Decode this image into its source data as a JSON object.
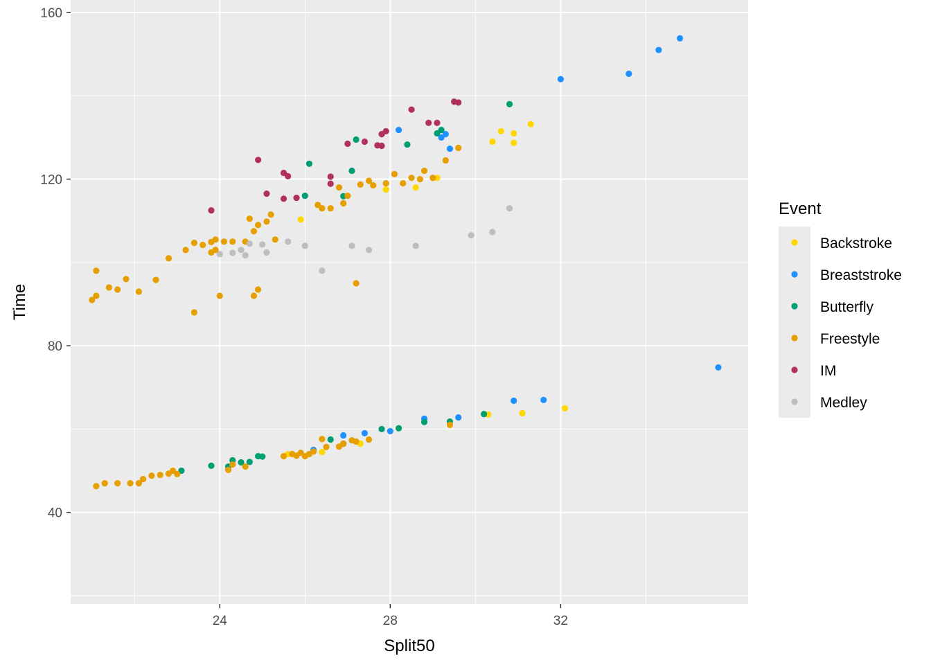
{
  "chart_data": {
    "type": "scatter",
    "title": "",
    "xlabel": "Split50",
    "ylabel": "Time",
    "xlim": [
      20.5,
      36.4
    ],
    "ylim": [
      18,
      163
    ],
    "x_ticks": [
      24,
      28,
      32
    ],
    "x_tick_labels": [
      "24",
      "28",
      "32"
    ],
    "y_ticks": [
      40,
      80,
      120,
      160
    ],
    "y_tick_labels": [
      "40",
      "80",
      "120",
      "160"
    ],
    "grid": true,
    "legend": {
      "title": "Event",
      "position": "right"
    },
    "series": [
      {
        "name": "Backstroke",
        "color": "#FFD700",
        "points": [
          [
            25.6,
            54.0
          ],
          [
            26.4,
            54.5
          ],
          [
            27.3,
            56.5
          ],
          [
            28.0,
            59.5
          ],
          [
            30.3,
            63.5
          ],
          [
            31.1,
            63.8
          ],
          [
            32.1,
            65.0
          ],
          [
            27.2,
            57.0
          ],
          [
            25.9,
            110.3
          ],
          [
            27.9,
            117.5
          ],
          [
            28.6,
            118.0
          ],
          [
            29.1,
            120.3
          ],
          [
            30.4,
            129.0
          ],
          [
            30.6,
            131.5
          ],
          [
            30.9,
            131.0
          ],
          [
            30.9,
            128.7
          ],
          [
            31.3,
            133.2
          ]
        ]
      },
      {
        "name": "Breaststroke",
        "color": "#1E90FF",
        "points": [
          [
            26.2,
            55.0
          ],
          [
            26.9,
            58.5
          ],
          [
            27.4,
            59.0
          ],
          [
            28.0,
            59.5
          ],
          [
            28.8,
            62.5
          ],
          [
            29.6,
            62.8
          ],
          [
            30.9,
            66.8
          ],
          [
            31.6,
            67.0
          ],
          [
            35.7,
            74.8
          ],
          [
            28.2,
            131.8
          ],
          [
            29.2,
            130.0
          ],
          [
            29.3,
            130.8
          ],
          [
            29.4,
            127.3
          ],
          [
            32.0,
            144.0
          ],
          [
            33.6,
            145.3
          ],
          [
            34.3,
            151.0
          ],
          [
            34.8,
            153.8
          ]
        ]
      },
      {
        "name": "Butterfly",
        "color": "#009E73",
        "points": [
          [
            23.1,
            50.0
          ],
          [
            23.8,
            51.2
          ],
          [
            24.2,
            51.0
          ],
          [
            24.3,
            52.5
          ],
          [
            24.5,
            52.0
          ],
          [
            24.7,
            52.1
          ],
          [
            24.9,
            53.5
          ],
          [
            25.0,
            53.4
          ],
          [
            26.6,
            57.5
          ],
          [
            26.9,
            56.5
          ],
          [
            27.8,
            60.0
          ],
          [
            28.2,
            60.2
          ],
          [
            29.4,
            61.8
          ],
          [
            28.8,
            61.7
          ],
          [
            30.2,
            63.6
          ],
          [
            26.1,
            123.7
          ],
          [
            26.0,
            116.0
          ],
          [
            26.9,
            115.9
          ],
          [
            27.1,
            122.0
          ],
          [
            27.2,
            129.5
          ],
          [
            28.4,
            128.3
          ],
          [
            29.1,
            131.0
          ],
          [
            29.2,
            131.8
          ],
          [
            30.8,
            138.0
          ]
        ]
      },
      {
        "name": "Freestyle",
        "color": "#E69F00",
        "points": [
          [
            21.1,
            46.3
          ],
          [
            21.3,
            47.0
          ],
          [
            21.6,
            47.0
          ],
          [
            21.9,
            47.0
          ],
          [
            22.1,
            47.0
          ],
          [
            22.2,
            48.0
          ],
          [
            22.4,
            48.8
          ],
          [
            22.6,
            49.0
          ],
          [
            22.8,
            49.3
          ],
          [
            22.9,
            50.0
          ],
          [
            23.0,
            49.2
          ],
          [
            24.2,
            50.2
          ],
          [
            24.3,
            51.5
          ],
          [
            24.6,
            51.0
          ],
          [
            25.8,
            53.6
          ],
          [
            25.7,
            54.0
          ],
          [
            26.2,
            54.6
          ],
          [
            26.5,
            55.7
          ],
          [
            26.8,
            55.8
          ],
          [
            27.1,
            57.3
          ],
          [
            27.2,
            57.0
          ],
          [
            26.4,
            57.6
          ],
          [
            26.9,
            56.5
          ],
          [
            27.5,
            57.5
          ],
          [
            26.0,
            53.5
          ],
          [
            26.1,
            54.0
          ],
          [
            25.9,
            54.3
          ],
          [
            25.5,
            53.5
          ],
          [
            21.0,
            91.0
          ],
          [
            21.1,
            92.0
          ],
          [
            21.1,
            98.0
          ],
          [
            21.4,
            94.0
          ],
          [
            21.6,
            93.5
          ],
          [
            21.8,
            96.0
          ],
          [
            22.1,
            93.0
          ],
          [
            22.5,
            95.8
          ],
          [
            22.8,
            101.0
          ],
          [
            23.2,
            103.0
          ],
          [
            23.4,
            88.0
          ],
          [
            23.4,
            104.7
          ],
          [
            23.6,
            104.2
          ],
          [
            23.8,
            104.9
          ],
          [
            23.8,
            102.4
          ],
          [
            23.9,
            103.0
          ],
          [
            23.9,
            105.5
          ],
          [
            24.0,
            92.0
          ],
          [
            24.1,
            105.0
          ],
          [
            24.3,
            105.0
          ],
          [
            24.6,
            105.0
          ],
          [
            24.7,
            110.5
          ],
          [
            24.8,
            107.5
          ],
          [
            24.8,
            92.0
          ],
          [
            24.9,
            93.5
          ],
          [
            24.9,
            109.0
          ],
          [
            25.2,
            111.5
          ],
          [
            25.1,
            109.8
          ],
          [
            25.3,
            105.5
          ],
          [
            26.3,
            113.8
          ],
          [
            26.4,
            113.0
          ],
          [
            26.6,
            113.0
          ],
          [
            26.8,
            118.0
          ],
          [
            26.9,
            114.2
          ],
          [
            27.0,
            116.0
          ],
          [
            27.2,
            95.0
          ],
          [
            27.3,
            118.7
          ],
          [
            27.5,
            119.6
          ],
          [
            27.6,
            118.5
          ],
          [
            27.9,
            119.0
          ],
          [
            28.1,
            121.2
          ],
          [
            28.3,
            119.0
          ],
          [
            28.5,
            120.3
          ],
          [
            28.7,
            120.0
          ],
          [
            28.8,
            122.0
          ],
          [
            29.0,
            120.3
          ],
          [
            29.3,
            124.5
          ],
          [
            29.6,
            127.5
          ],
          [
            29.4,
            61.0
          ]
        ]
      },
      {
        "name": "IM",
        "color": "#B03060",
        "points": [
          [
            23.8,
            112.5
          ],
          [
            24.9,
            124.6
          ],
          [
            25.1,
            116.5
          ],
          [
            25.5,
            115.3
          ],
          [
            25.5,
            121.5
          ],
          [
            25.6,
            120.7
          ],
          [
            25.8,
            115.5
          ],
          [
            26.6,
            118.9
          ],
          [
            26.6,
            120.6
          ],
          [
            27.0,
            128.5
          ],
          [
            27.4,
            129.0
          ],
          [
            27.7,
            128.1
          ],
          [
            27.8,
            128.0
          ],
          [
            27.8,
            130.8
          ],
          [
            27.9,
            131.5
          ],
          [
            28.5,
            136.7
          ],
          [
            28.9,
            133.5
          ],
          [
            29.1,
            133.5
          ],
          [
            29.5,
            138.6
          ],
          [
            29.6,
            138.4
          ]
        ]
      },
      {
        "name": "Medley",
        "color": "#BEBEBE",
        "points": [
          [
            24.0,
            102.0
          ],
          [
            24.3,
            102.3
          ],
          [
            24.5,
            103.0
          ],
          [
            24.6,
            101.7
          ],
          [
            24.7,
            104.5
          ],
          [
            25.0,
            104.3
          ],
          [
            25.1,
            102.4
          ],
          [
            25.6,
            105.0
          ],
          [
            26.0,
            104.0
          ],
          [
            26.4,
            98.0
          ],
          [
            27.1,
            104.0
          ],
          [
            27.5,
            103.0
          ],
          [
            28.6,
            104.0
          ],
          [
            29.9,
            106.5
          ],
          [
            30.4,
            107.3
          ],
          [
            30.8,
            113.0
          ]
        ]
      }
    ]
  }
}
